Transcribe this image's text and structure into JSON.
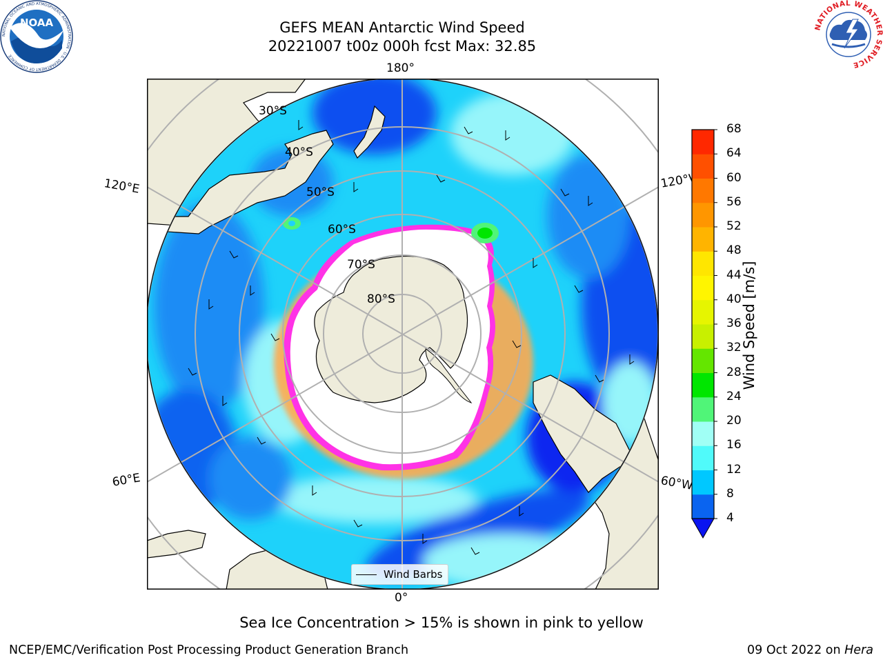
{
  "header": {
    "title_line1": "GEFS MEAN Antarctic Wind Speed",
    "title_line2": "20221007 t00z 000h fcst   Max: 32.85"
  },
  "logos": {
    "noaa": "NOAA",
    "nws_ring": "NATIONAL WEATHER SERVICE",
    "noaa_ring": "NATIONAL OCEANIC AND ATMOSPHERIC ADMINISTRATION · U.S. DEPARTMENT OF COMMERCE"
  },
  "map": {
    "lon_labels": {
      "top": "180°",
      "bottom": "0°",
      "upper_left": "120°E",
      "upper_right": "120°W",
      "lower_left": "60°E",
      "lower_right": "60°W"
    },
    "lat_labels": [
      "30°S",
      "40°S",
      "50°S",
      "60°S",
      "70°S",
      "80°S"
    ],
    "legend_label": "Wind Barbs",
    "ocean_colors": {
      "base": "#1ed2fa",
      "light": "#96f5fa",
      "strong": "#0a69f5",
      "deep": "#0a28f0",
      "land": "#eeecdb",
      "ice": "#ffffff",
      "ice_edge": "#ff32e6",
      "ice_edge_outer": "#ffaa50"
    }
  },
  "colorbar": {
    "label": "Wind Speed [m/s]",
    "ticks": [
      "4",
      "8",
      "12",
      "16",
      "20",
      "24",
      "28",
      "32",
      "36",
      "40",
      "44",
      "48",
      "52",
      "56",
      "60",
      "64",
      "68"
    ],
    "colors": [
      "#0a64f0",
      "#00c8ff",
      "#50fafa",
      "#a0fff5",
      "#50f578",
      "#00e600",
      "#64e600",
      "#c8f000",
      "#e6f500",
      "#fff500",
      "#ffe600",
      "#ffb400",
      "#ff9600",
      "#ff7800",
      "#ff5000",
      "#ff2800",
      "#ff0000"
    ],
    "under_color": "#0a14f0"
  },
  "footer": {
    "note": "Sea Ice Concentration > 15% is shown in pink to yellow",
    "left": "NCEP/EMC/Verification Post Processing Product Generation Branch",
    "right_date": "09 Oct 2022 on ",
    "right_host": "Hera"
  }
}
